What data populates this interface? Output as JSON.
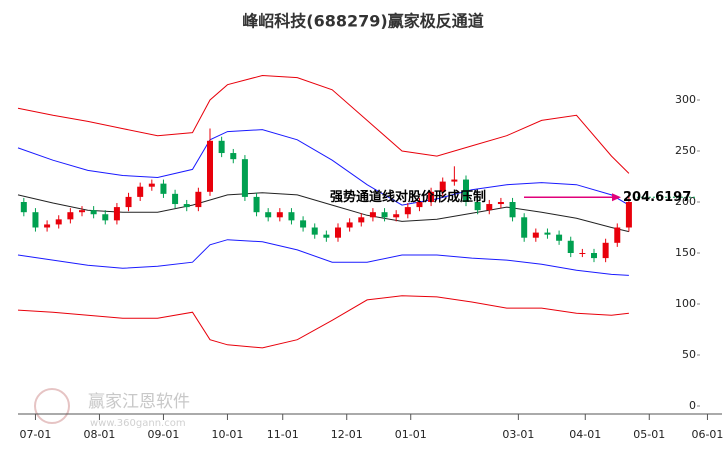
{
  "chart_data": {
    "type": "candlestick",
    "title": "峰岹科技(688279)赢家极反通道",
    "xlim": [
      -6,
      236
    ],
    "ylim": [
      0,
      350
    ],
    "yticks": [
      0,
      50,
      100,
      150,
      200,
      250,
      300
    ],
    "xticks": [
      {
        "value": 0,
        "label": "07-01"
      },
      {
        "value": 22,
        "label": "08-01"
      },
      {
        "value": 44,
        "label": "09-01"
      },
      {
        "value": 66,
        "label": "10-01"
      },
      {
        "value": 85,
        "label": "11-01"
      },
      {
        "value": 107,
        "label": "12-01"
      },
      {
        "value": 129,
        "label": "01-01"
      },
      {
        "value": 166,
        "label": "03-01"
      },
      {
        "value": 189,
        "label": "04-01"
      },
      {
        "value": 211,
        "label": "05-01"
      },
      {
        "value": 231,
        "label": "06-01"
      }
    ],
    "up_color": "#e8000b",
    "down_color": "#00a050",
    "candles": {
      "x": [
        -4,
        0,
        4,
        8,
        12,
        16,
        20,
        24,
        28,
        32,
        36,
        40,
        44,
        48,
        52,
        56,
        60,
        64,
        68,
        72,
        76,
        80,
        84,
        88,
        92,
        96,
        100,
        104,
        108,
        112,
        116,
        120,
        124,
        128,
        132,
        136,
        140,
        144,
        148,
        152,
        156,
        160,
        164,
        168,
        172,
        176,
        180,
        184,
        188,
        192,
        196,
        200,
        204
      ],
      "open": [
        200,
        190,
        175,
        178,
        183,
        190,
        192,
        188,
        182,
        195,
        205,
        215,
        218,
        208,
        198,
        195,
        210,
        260,
        248,
        242,
        205,
        190,
        185,
        190,
        182,
        175,
        168,
        165,
        175,
        180,
        185,
        190,
        185,
        188,
        195,
        200,
        210,
        220,
        222,
        200,
        192,
        198,
        200,
        185,
        165,
        170,
        168,
        162,
        150,
        150,
        145,
        160,
        175
      ],
      "high": [
        204,
        194,
        182,
        187,
        194,
        196,
        196,
        192,
        199,
        209,
        219,
        222,
        222,
        212,
        202,
        214,
        272,
        264,
        252,
        246,
        209,
        194,
        194,
        194,
        186,
        179,
        172,
        179,
        184,
        189,
        194,
        194,
        192,
        199,
        204,
        214,
        224,
        235,
        226,
        204,
        202,
        204,
        204,
        189,
        174,
        174,
        172,
        166,
        154,
        154,
        164,
        179,
        210
      ],
      "low": [
        186,
        171,
        171,
        174,
        179,
        186,
        184,
        178,
        178,
        191,
        201,
        211,
        204,
        194,
        191,
        191,
        206,
        244,
        238,
        201,
        186,
        181,
        181,
        178,
        171,
        164,
        161,
        161,
        171,
        176,
        181,
        181,
        181,
        184,
        191,
        196,
        206,
        216,
        196,
        188,
        188,
        194,
        181,
        161,
        161,
        164,
        158,
        146,
        146,
        141,
        141,
        156,
        171
      ],
      "close": [
        190,
        175,
        178,
        183,
        190,
        192,
        188,
        182,
        195,
        205,
        215,
        218,
        208,
        198,
        195,
        210,
        260,
        248,
        242,
        205,
        190,
        185,
        190,
        182,
        175,
        168,
        165,
        175,
        180,
        185,
        190,
        185,
        188,
        195,
        200,
        210,
        220,
        222,
        200,
        192,
        198,
        200,
        185,
        165,
        170,
        168,
        162,
        150,
        150,
        145,
        160,
        175,
        200
      ]
    },
    "lines": {
      "x": [
        -6,
        6,
        18,
        30,
        42,
        54,
        60,
        66,
        78,
        90,
        102,
        114,
        126,
        138,
        150,
        162,
        174,
        186,
        198,
        204
      ],
      "series": [
        {
          "color": "#e8000b",
          "values": [
            292,
            285,
            279,
            272,
            265,
            268,
            300,
            315,
            324,
            322,
            310,
            280,
            250,
            245,
            255,
            265,
            280,
            285,
            245,
            228
          ]
        },
        {
          "color": "#1a1aff",
          "values": [
            253,
            241,
            231,
            226,
            224,
            232,
            261,
            269,
            271,
            261,
            241,
            217,
            197,
            203,
            212,
            217,
            219,
            217,
            207,
            197
          ]
        },
        {
          "color": "#222222",
          "values": [
            207,
            199,
            192,
            190,
            190,
            197,
            202,
            207,
            209,
            207,
            197,
            187,
            181,
            183,
            189,
            195,
            190,
            184,
            175,
            171
          ]
        },
        {
          "color": "#1a1aff",
          "values": [
            148,
            143,
            138,
            135,
            137,
            141,
            158,
            163,
            161,
            153,
            141,
            141,
            148,
            148,
            145,
            143,
            139,
            133,
            129,
            128
          ]
        },
        {
          "color": "#e8000b",
          "values": [
            94,
            92,
            89,
            86,
            86,
            92,
            65,
            60,
            57,
            65,
            84,
            104,
            108,
            107,
            102,
            96,
            96,
            91,
            89,
            91
          ]
        }
      ]
    },
    "annotation": {
      "text": "强势通道线对股价形成压制",
      "value": 204.6197,
      "label": "204.6197",
      "color": "#e0007a",
      "level_color": "#00a050"
    },
    "watermark": "赢家江恩软件",
    "watermark_url": "www.360gann.com"
  }
}
